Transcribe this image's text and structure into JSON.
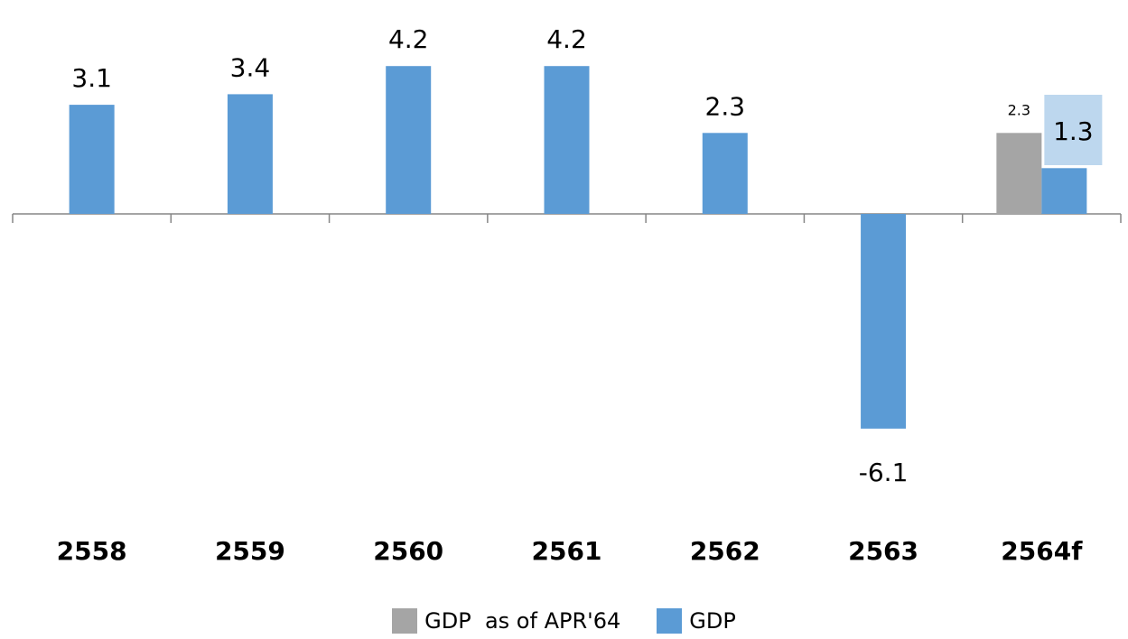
{
  "chart_data": {
    "type": "bar",
    "categories": [
      "2558",
      "2559",
      "2560",
      "2561",
      "2562",
      "2563",
      "2564f"
    ],
    "series": [
      {
        "name": "GDP  as of APR'64",
        "color": "#a5a5a5",
        "values": [
          null,
          null,
          null,
          null,
          null,
          null,
          2.3
        ],
        "labels": [
          null,
          null,
          null,
          null,
          null,
          null,
          "2.3"
        ]
      },
      {
        "name": "GDP",
        "color": "#5b9bd5",
        "values": [
          3.1,
          3.4,
          4.2,
          4.2,
          2.3,
          -6.1,
          1.3
        ],
        "labels": [
          "3.1",
          "3.4",
          "4.2",
          "4.2",
          "2.3",
          "-6.1",
          "1.3"
        ]
      }
    ],
    "highlight_label_color": "#bdd7ee",
    "xlabel": "",
    "ylabel": "",
    "legend_position": "bottom",
    "grid": false
  }
}
